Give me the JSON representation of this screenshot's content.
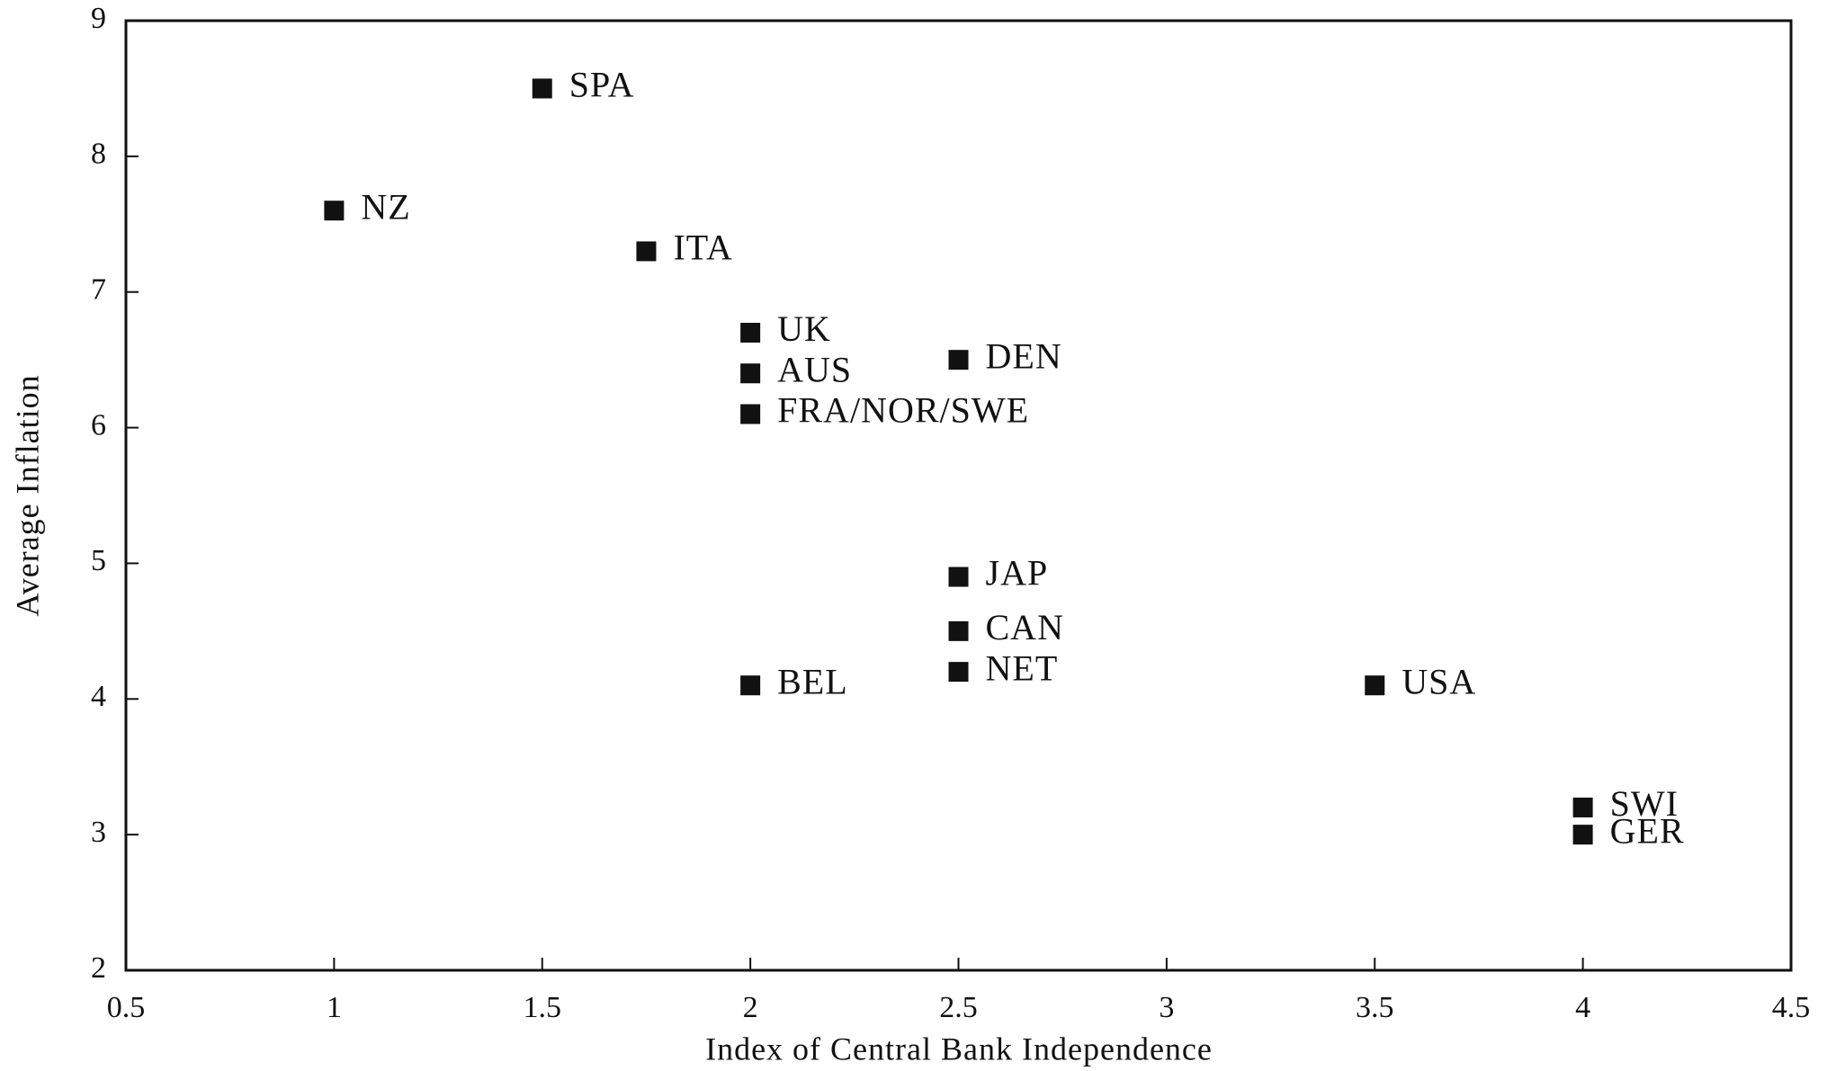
{
  "chart_data": {
    "type": "scatter",
    "x_label": "Index of Central Bank Independence",
    "y_label": "Average Inflation",
    "labels": [
      "SPA",
      "NZ",
      "ITA",
      "UK",
      "AUS",
      "FRA/NOR/SWE",
      "DEN",
      "JAP",
      "CAN",
      "NET",
      "BEL",
      "USA",
      "SWI",
      "GER"
    ],
    "x": [
      1.5,
      1,
      1.75,
      2,
      2,
      2,
      2.5,
      2.5,
      2.5,
      2.5,
      2,
      3.5,
      4,
      4
    ],
    "values": [
      8.5,
      7.6,
      7.3,
      6.7,
      6.4,
      6.1,
      6.5,
      4.9,
      4.5,
      4.2,
      4.1,
      4.1,
      3.2,
      3.0
    ],
    "color": "#111111",
    "xlim": [
      0.5,
      4.5
    ],
    "xticks": [
      0.5,
      1,
      1.5,
      2,
      2.5,
      3,
      3.5,
      4,
      4.5
    ],
    "ylim": [
      2,
      9
    ],
    "yticks": [
      2,
      3,
      4,
      5,
      6,
      7,
      8,
      9
    ],
    "grid": false
  }
}
